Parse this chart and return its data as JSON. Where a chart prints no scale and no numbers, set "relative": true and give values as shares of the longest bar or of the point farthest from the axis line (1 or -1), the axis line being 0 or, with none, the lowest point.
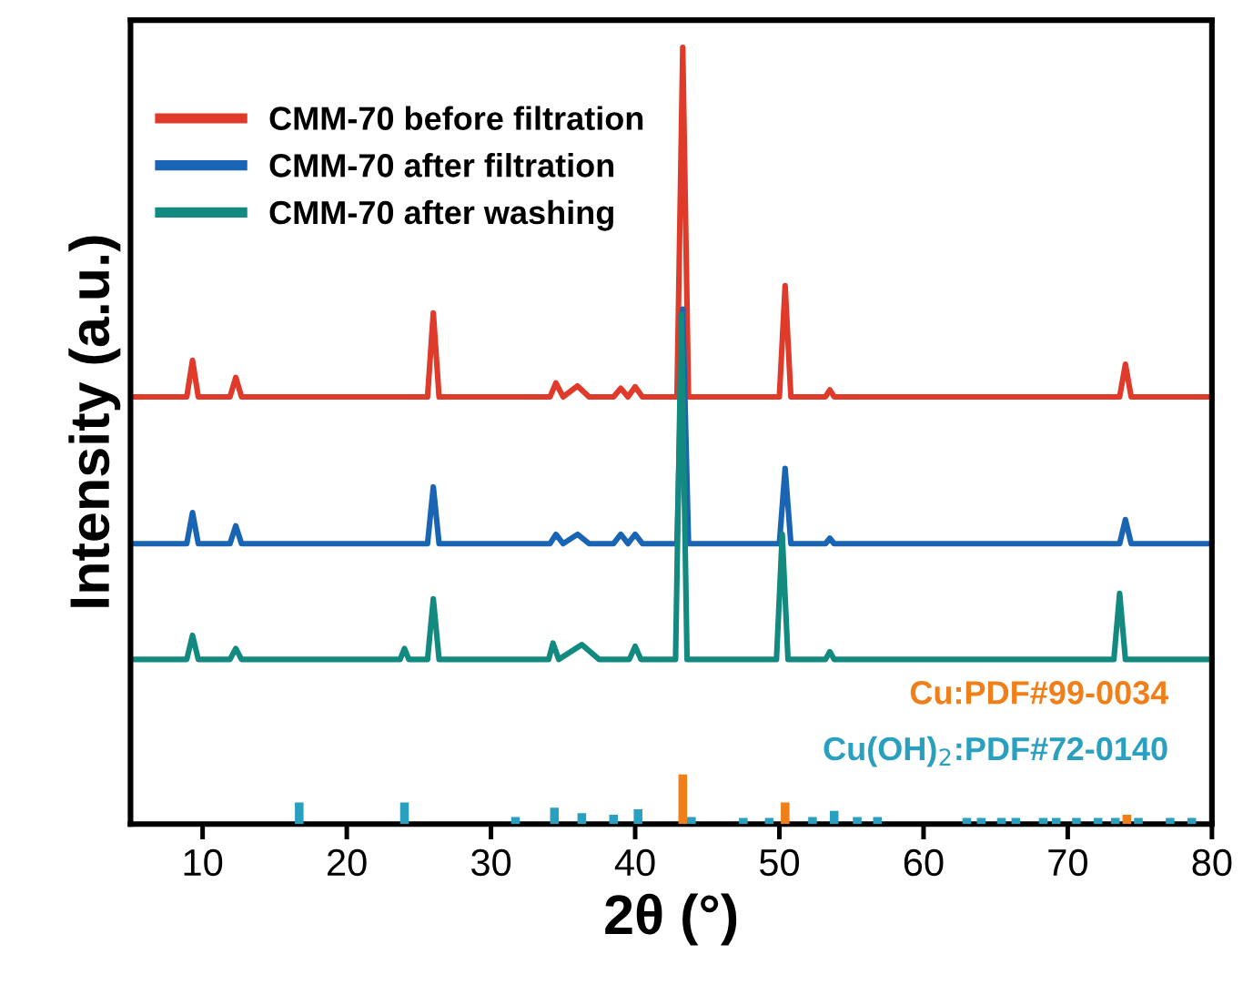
{
  "chart_data": {
    "type": "line",
    "relative": true,
    "xlabel": "2θ (°)",
    "ylabel": "Intensity (a.u.)",
    "xlim": [
      5,
      80
    ],
    "xticks": [
      10,
      20,
      30,
      40,
      50,
      60,
      70,
      80
    ],
    "legend": "top left",
    "grid": false,
    "series": [
      {
        "name": "CMM-70 before filtration",
        "color": "#e03a2a",
        "x": [
          5,
          8.9,
          9.3,
          9.7,
          11.9,
          12.3,
          12.7,
          25.6,
          26,
          26.4,
          34.1,
          34.5,
          35,
          36,
          36.8,
          38.5,
          39,
          39.5,
          40,
          40.5,
          42.9,
          43.3,
          43.7,
          50,
          50.4,
          50.8,
          53.2,
          53.5,
          53.8,
          73.6,
          74,
          74.4,
          80
        ],
        "values": [
          0.55,
          0.55,
          0.597,
          0.55,
          0.55,
          0.575,
          0.55,
          0.55,
          0.658,
          0.55,
          0.55,
          0.568,
          0.55,
          0.564,
          0.55,
          0.55,
          0.561,
          0.55,
          0.563,
          0.55,
          0.55,
          1,
          0.55,
          0.55,
          0.693,
          0.55,
          0.55,
          0.559,
          0.55,
          0.55,
          0.592,
          0.55,
          0.55
        ]
      },
      {
        "name": "CMM-70 after filtration",
        "color": "#1a64b4",
        "x": [
          5,
          8.9,
          9.3,
          9.7,
          11.9,
          12.3,
          12.7,
          25.6,
          26,
          26.4,
          34.1,
          34.5,
          35,
          36,
          36.8,
          38.5,
          39,
          39.5,
          40,
          40.5,
          42.9,
          43.3,
          43.7,
          50,
          50.4,
          50.8,
          53.2,
          53.5,
          53.8,
          73.6,
          74,
          74.4,
          80
        ],
        "values": [
          0.361,
          0.361,
          0.401,
          0.361,
          0.361,
          0.384,
          0.361,
          0.361,
          0.434,
          0.361,
          0.361,
          0.373,
          0.361,
          0.373,
          0.361,
          0.361,
          0.373,
          0.361,
          0.373,
          0.361,
          0.361,
          0.663,
          0.361,
          0.361,
          0.458,
          0.361,
          0.361,
          0.368,
          0.361,
          0.361,
          0.392,
          0.361,
          0.361
        ]
      },
      {
        "name": "CMM-70 after washing",
        "color": "#128a80",
        "x": [
          5,
          8.9,
          9.3,
          9.7,
          11.9,
          12.3,
          12.7,
          23.7,
          24,
          24.3,
          25.6,
          26,
          26.4,
          34,
          34.3,
          34.7,
          36.3,
          37.5,
          39.6,
          40,
          40.4,
          42.8,
          43.2,
          43.6,
          49.8,
          50.2,
          50.6,
          53.2,
          53.5,
          53.8,
          73.2,
          73.6,
          74,
          80
        ],
        "values": [
          0.212,
          0.212,
          0.243,
          0.212,
          0.212,
          0.226,
          0.212,
          0.212,
          0.226,
          0.212,
          0.212,
          0.29,
          0.212,
          0.212,
          0.233,
          0.212,
          0.231,
          0.212,
          0.212,
          0.229,
          0.212,
          0.212,
          0.656,
          0.212,
          0.212,
          0.373,
          0.212,
          0.212,
          0.222,
          0.212,
          0.212,
          0.297,
          0.212,
          0.212
        ]
      },
      {
        "type": "bar",
        "color": "#f07f1a",
        "x": [
          43.3,
          50.4,
          74.1
        ],
        "values": [
          0.064,
          0.028,
          0.012
        ]
      },
      {
        "type": "bar",
        "color": "#2aa0c0",
        "x": [
          16.7,
          24.0,
          31.7,
          34.4,
          36.3,
          38.5,
          40.2,
          43.9,
          47.5,
          49.3,
          52.3,
          53.8,
          55.4,
          56.8,
          63.0,
          64.0,
          65.4,
          66.4,
          68.3,
          69.2,
          70.6,
          72.1,
          73.3,
          74.9,
          77.1,
          78.6
        ],
        "values": [
          0.028,
          0.028,
          0.009,
          0.021,
          0.014,
          0.012,
          0.019,
          0.009,
          0.008,
          0.008,
          0.009,
          0.017,
          0.009,
          0.009,
          0.008,
          0.008,
          0.008,
          0.008,
          0.008,
          0.008,
          0.008,
          0.008,
          0.008,
          0.008,
          0.008,
          0.008
        ]
      }
    ],
    "annotations": [
      "Cu:PDF#99-0034",
      "Cu(OH)$_{2}$:PDF#72-0140"
    ]
  }
}
